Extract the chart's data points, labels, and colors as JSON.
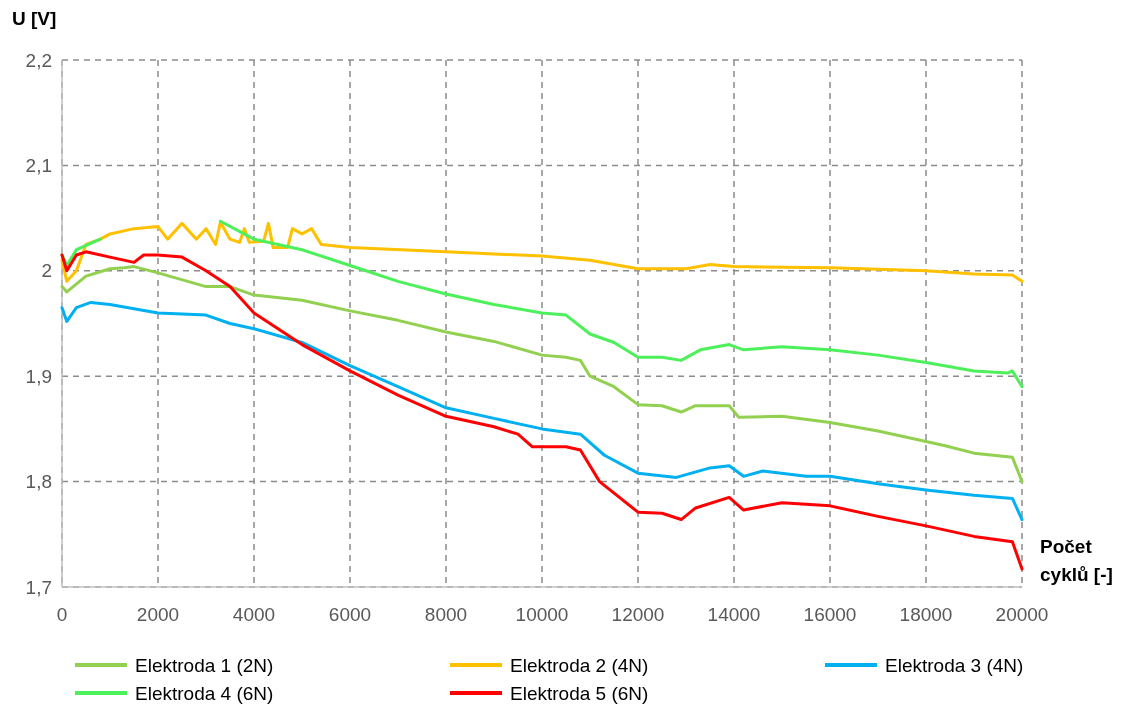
{
  "chart_data": {
    "type": "line",
    "ylabel": "U [V]",
    "xlabel": "Počet cyklů [-]",
    "xlim": [
      0,
      20000
    ],
    "xticks": [
      0,
      2000,
      4000,
      6000,
      8000,
      10000,
      12000,
      14000,
      16000,
      18000,
      20000
    ],
    "ylim": [
      1.7,
      2.2
    ],
    "yticks": [
      {
        "value": 1.7,
        "label": "1,7"
      },
      {
        "value": 1.8,
        "label": "1,8"
      },
      {
        "value": 1.9,
        "label": "1,9"
      },
      {
        "value": 2,
        "label": "2"
      },
      {
        "value": 2.1,
        "label": "2,1"
      },
      {
        "value": 2.2,
        "label": "2,2"
      }
    ],
    "grid": true,
    "legend": "bottom",
    "marker": "none",
    "line_style": "solid",
    "series": [
      {
        "name": "Elektroda 1 (2N)",
        "color": "#92d050",
        "x": [
          0,
          100,
          500,
          1000,
          1300,
          1500,
          2000,
          3000,
          3500,
          4000,
          5000,
          6000,
          7000,
          8000,
          9000,
          10000,
          10500,
          10800,
          11000,
          11500,
          12000,
          12500,
          12900,
          13200,
          13900,
          14100,
          15000,
          16000,
          17000,
          18000,
          18400,
          19000,
          19800,
          20000
        ],
        "values": [
          1.985,
          1.98,
          1.995,
          2.002,
          2.003,
          2.004,
          1.998,
          1.985,
          1.985,
          1.977,
          1.972,
          1.962,
          1.953,
          1.942,
          1.933,
          1.92,
          1.918,
          1.915,
          1.9,
          1.89,
          1.873,
          1.872,
          1.866,
          1.872,
          1.872,
          1.861,
          1.862,
          1.856,
          1.848,
          1.838,
          1.834,
          1.827,
          1.823,
          1.8
        ]
      },
      {
        "name": "Elektroda 2 (4N)",
        "color": "#ffc000",
        "x": [
          0,
          100,
          300,
          500,
          800,
          1000,
          1500,
          2000,
          2200,
          2500,
          2800,
          3000,
          3200,
          3300,
          3500,
          3700,
          3800,
          3900,
          4200,
          4300,
          4400,
          4700,
          4800,
          5000,
          5200,
          5400,
          6000,
          8000,
          10000,
          11000,
          11500,
          12000,
          12500,
          13000,
          13500,
          14000,
          16000,
          18000,
          19000,
          19800,
          20000
        ],
        "values": [
          2.01,
          1.99,
          2.0,
          2.025,
          2.03,
          2.035,
          2.04,
          2.042,
          2.03,
          2.045,
          2.03,
          2.04,
          2.025,
          2.046,
          2.03,
          2.027,
          2.04,
          2.027,
          2.028,
          2.045,
          2.022,
          2.022,
          2.04,
          2.035,
          2.04,
          2.025,
          2.022,
          2.018,
          2.014,
          2.01,
          2.006,
          2.002,
          2.002,
          2.002,
          2.006,
          2.004,
          2.003,
          2.0,
          1.997,
          1.996,
          1.99
        ]
      },
      {
        "name": "Elektroda 3 (4N)",
        "color": "#00b0f0",
        "x": [
          0,
          100,
          300,
          600,
          1000,
          2000,
          3000,
          3500,
          4000,
          5000,
          6000,
          7000,
          8000,
          9000,
          10000,
          10800,
          11300,
          12000,
          12800,
          13500,
          13900,
          14200,
          14600,
          15500,
          16000,
          17000,
          18000,
          19000,
          19800,
          20000
        ],
        "values": [
          1.965,
          1.952,
          1.965,
          1.97,
          1.968,
          1.96,
          1.958,
          1.95,
          1.945,
          1.932,
          1.91,
          1.89,
          1.87,
          1.86,
          1.85,
          1.845,
          1.825,
          1.808,
          1.804,
          1.813,
          1.815,
          1.805,
          1.81,
          1.805,
          1.805,
          1.798,
          1.792,
          1.787,
          1.784,
          1.764
        ]
      },
      {
        "name": "Elektroda 4 (6N)",
        "color": "#4cf05a",
        "x": [
          0,
          100,
          300,
          800,
          2000,
          3300,
          4000,
          5000,
          6000,
          7000,
          8000,
          9000,
          10000,
          10500,
          11000,
          11500,
          12000,
          12500,
          12900,
          13300,
          13900,
          14200,
          15000,
          16000,
          17000,
          18000,
          19000,
          19700,
          19800,
          20000
        ],
        "values": [
          2.015,
          2.005,
          2.02,
          2.03,
          null,
          2.047,
          2.03,
          2.02,
          2.005,
          1.99,
          1.978,
          1.968,
          1.96,
          1.958,
          1.94,
          1.932,
          1.918,
          1.918,
          1.915,
          1.925,
          1.93,
          1.925,
          1.928,
          1.925,
          1.92,
          1.913,
          1.905,
          1.903,
          1.905,
          1.89
        ]
      },
      {
        "name": "Elektroda 5 (6N)",
        "color": "#ff0000",
        "x": [
          0,
          100,
          300,
          500,
          1000,
          1500,
          1700,
          2000,
          2500,
          3000,
          3500,
          4000,
          4500,
          5000,
          6000,
          7000,
          8000,
          9000,
          9500,
          9800,
          10500,
          10800,
          11200,
          12000,
          12500,
          12900,
          13200,
          13900,
          14200,
          15000,
          16000,
          17000,
          18000,
          19000,
          19800,
          20000
        ],
        "values": [
          2.015,
          2.0,
          2.015,
          2.018,
          2.013,
          2.008,
          2.015,
          2.015,
          2.013,
          2.0,
          1.985,
          1.96,
          1.945,
          1.93,
          1.905,
          1.882,
          1.862,
          1.852,
          1.845,
          1.833,
          1.833,
          1.83,
          1.8,
          1.771,
          1.77,
          1.764,
          1.775,
          1.785,
          1.773,
          1.78,
          1.777,
          1.767,
          1.758,
          1.748,
          1.743,
          1.717
        ]
      }
    ]
  }
}
